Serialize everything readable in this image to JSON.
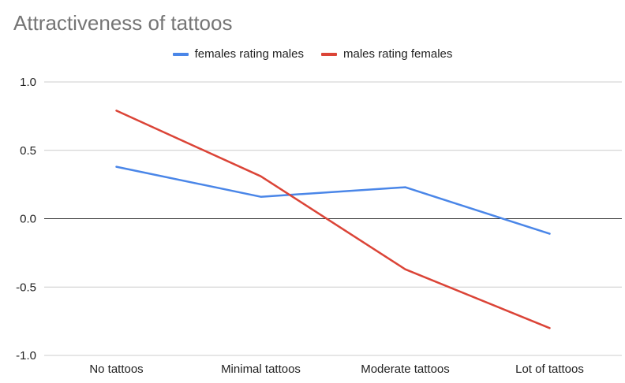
{
  "chart_data": {
    "type": "line",
    "title": "Attractiveness of tattoos",
    "xlabel": "",
    "ylabel": "",
    "categories": [
      "No tattoos",
      "Minimal tattoos",
      "Moderate tattoos",
      "Lot of tattoos"
    ],
    "series": [
      {
        "name": "females rating males",
        "values": [
          0.38,
          0.16,
          0.23,
          -0.11
        ],
        "color": "#4A86E8"
      },
      {
        "name": "males rating females",
        "values": [
          0.79,
          0.31,
          -0.37,
          -0.8
        ],
        "color": "#DB4437"
      }
    ],
    "ylim": [
      -1.0,
      1.0
    ],
    "yticks": [
      "1.0",
      "0.5",
      "0.0",
      "-0.5",
      "-1.0"
    ],
    "ytick_values": [
      1.0,
      0.5,
      0.0,
      -0.5,
      -1.0
    ],
    "grid": true,
    "legend_position": "top-center"
  }
}
